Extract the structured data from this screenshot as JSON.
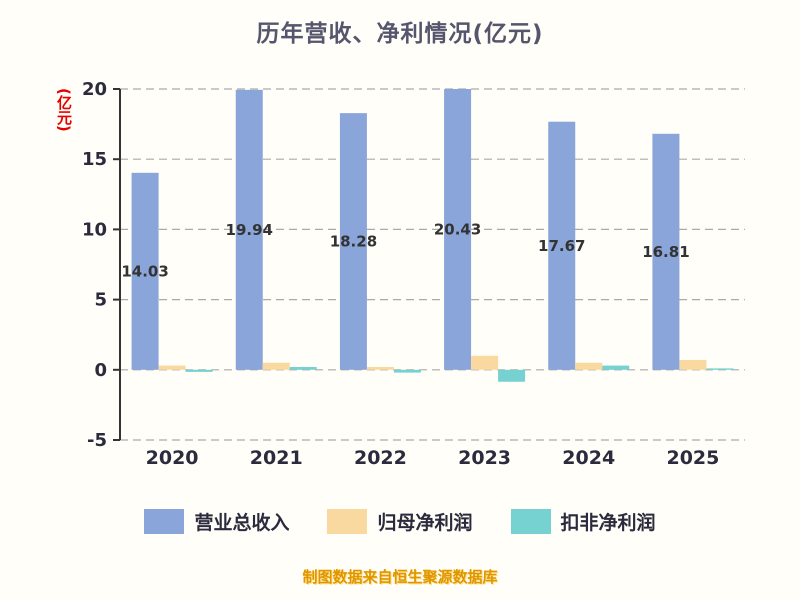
{
  "title": "历年营收、净利情况(亿元)",
  "y_axis_label": "(亿元)",
  "footer": "制图数据来自恒生聚源数据库",
  "colors": {
    "revenue": "#8aa5d9",
    "net_profit": "#fad9a0",
    "non_gaap": "#76d2d0",
    "title_text": "#55556d",
    "axis_text": "#2b2b3d",
    "bar_label_text": "#333333",
    "ylabel_text": "#e60000",
    "footer_text": "#e09600",
    "grid": "#aaaaaa",
    "axis_line": "#333333",
    "background": "#fffef8"
  },
  "chart_data": {
    "type": "bar",
    "title": "历年营收、净利情况(亿元)",
    "xlabel": "",
    "ylabel": "(亿元)",
    "categories": [
      "2020",
      "2021",
      "2022",
      "2023",
      "2024",
      "2025"
    ],
    "series": [
      {
        "name": "营业总收入",
        "color_key": "revenue",
        "values": [
          14.03,
          19.94,
          18.28,
          20.43,
          17.67,
          16.81
        ],
        "labels": [
          "14.03",
          "19.94",
          "18.28",
          "20.43",
          "17.67",
          "16.81"
        ],
        "show_labels": true
      },
      {
        "name": "归母净利润",
        "color_key": "net_profit",
        "values": [
          0.3,
          0.5,
          0.2,
          1.0,
          0.5,
          0.7
        ],
        "labels": [],
        "show_labels": false
      },
      {
        "name": "扣非净利润",
        "color_key": "non_gaap",
        "values": [
          -0.15,
          0.2,
          -0.2,
          -0.85,
          0.3,
          0.1
        ],
        "labels": [],
        "show_labels": false
      }
    ],
    "y_ticks": [
      -5,
      0,
      5,
      10,
      15,
      20
    ],
    "ylim": [
      -5,
      20
    ],
    "clip_max": 20,
    "grid": "dashed-horizontal",
    "legend_position": "bottom",
    "source_note": "制图数据来自恒生聚源数据库"
  }
}
